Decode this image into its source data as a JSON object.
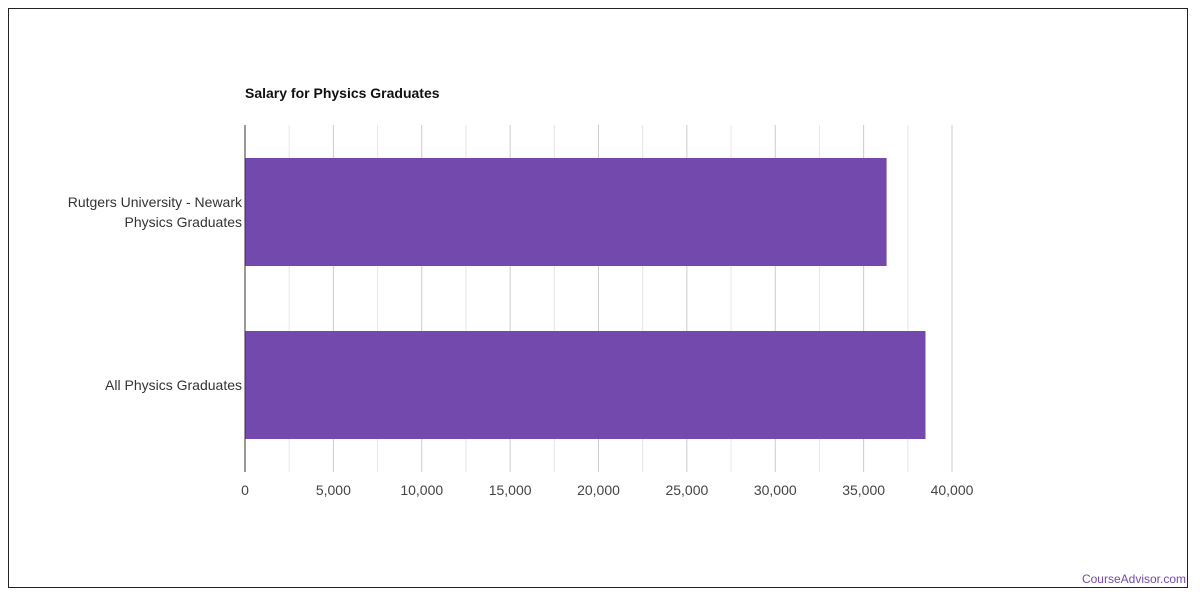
{
  "colors": {
    "bar": "#7449ae",
    "grid": "#cccccc",
    "minor_grid": "#e6e6e6",
    "axis": "#333333",
    "brand": "#7449ae"
  },
  "watermark": "CourseAdvisor.com",
  "chart_data": {
    "type": "bar",
    "orientation": "horizontal",
    "title": "Salary for Physics Graduates",
    "categories": [
      [
        "Rutgers University - Newark",
        "Physics Graduates"
      ],
      [
        "All Physics Graduates"
      ]
    ],
    "values": [
      36300,
      38500
    ],
    "xlim": [
      0,
      40000
    ],
    "xticks": [
      "0",
      "5,000",
      "10,000",
      "15,000",
      "20,000",
      "25,000",
      "30,000",
      "35,000",
      "40,000"
    ],
    "grid": true
  }
}
